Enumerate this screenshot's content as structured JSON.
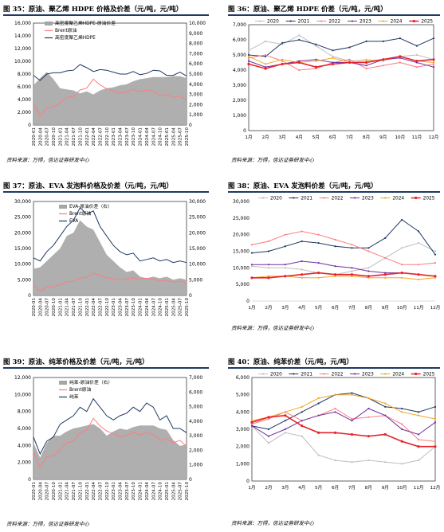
{
  "source_label": "资料来源：万得，信达证券研发中心",
  "chart_data": [
    {
      "id": "c35",
      "type": "line",
      "title": "图 35：原油、聚乙烯 HDPE 价格及价差（元/吨，元/吨）",
      "x": [
        "2020-01",
        "2020-04",
        "2020-07",
        "2020-10",
        "2021-01",
        "2021-04",
        "2021-07",
        "2021-10",
        "2022-01",
        "2022-04",
        "2022-07",
        "2022-10",
        "2023-01",
        "2023-04",
        "2023-07",
        "2023-10",
        "2024-01",
        "2024-04",
        "2024-07",
        "2024-10",
        "2025-01",
        "2025-04",
        "2025-07",
        "2025-10"
      ],
      "ylim_left": [
        0,
        16000
      ],
      "yticks_left": [
        0,
        2000,
        4000,
        6000,
        8000,
        10000,
        12000,
        14000,
        16000
      ],
      "ylim_right": [
        0,
        10000
      ],
      "yticks_right": [
        0,
        1000,
        2000,
        3000,
        4000,
        5000,
        6000,
        7000,
        8000,
        9000,
        10000
      ],
      "legend_position": "top-left",
      "series": [
        {
          "name": "高密度聚乙烯HDPE-原油价差",
          "kind": "area",
          "axis": "right",
          "color": "#a6a6a6",
          "values": [
            3900,
            4600,
            5200,
            4500,
            3600,
            3500,
            3400,
            3100,
            3300,
            3000,
            3400,
            3600,
            3700,
            3900,
            4000,
            4300,
            4500,
            4600,
            4700,
            4700,
            4700,
            4800,
            4800,
            4600
          ]
        },
        {
          "name": "Brent原油",
          "kind": "line",
          "axis": "left",
          "color": "#ff7c80",
          "values": [
            3300,
            1400,
            2700,
            2800,
            3500,
            4300,
            4500,
            5500,
            5800,
            7200,
            6300,
            5700,
            5400,
            5000,
            5200,
            5600,
            5200,
            5500,
            5300,
            4600,
            4800,
            4300,
            4600,
            3900
          ]
        },
        {
          "name": "高密度聚乙烯HDPE",
          "kind": "line",
          "axis": "left",
          "color": "#1f3864",
          "values": [
            7800,
            7000,
            8000,
            8200,
            8200,
            8500,
            8600,
            9500,
            9000,
            8400,
            8700,
            8600,
            8300,
            8000,
            8000,
            8400,
            7900,
            8100,
            8600,
            8500,
            7800,
            7800,
            8300,
            7700
          ]
        }
      ]
    },
    {
      "id": "c36",
      "type": "line",
      "title": "图 36：原油、聚乙烯 HDPE 价差（元/吨，元/吨）",
      "x": [
        "1月",
        "2月",
        "3月",
        "4月",
        "5月",
        "6月",
        "7月",
        "8月",
        "9月",
        "10月",
        "11月",
        "12月"
      ],
      "ylim": [
        0,
        7000
      ],
      "yticks": [
        0,
        1000,
        2000,
        3000,
        4000,
        5000,
        6000,
        7000
      ],
      "legend_position": "top",
      "series": [
        {
          "name": "2020",
          "color": "#bfbfbf",
          "values": [
            5300,
            5900,
            5700,
            6300,
            5600,
            4900,
            4600,
            4700,
            4600,
            4900,
            5000,
            4700
          ]
        },
        {
          "name": "2021",
          "color": "#1f3864",
          "values": [
            5000,
            4900,
            5800,
            6000,
            5700,
            5300,
            5500,
            5900,
            5900,
            6100,
            5600,
            6100
          ]
        },
        {
          "name": "2022",
          "color": "#ff7c80",
          "values": [
            4800,
            5000,
            4600,
            4000,
            4100,
            4500,
            4700,
            4100,
            4300,
            4500,
            4200,
            4400
          ]
        },
        {
          "name": "2023",
          "color": "#7030a0",
          "values": [
            4600,
            4200,
            4400,
            4600,
            4700,
            4500,
            4500,
            4300,
            4700,
            4800,
            4500,
            4200
          ]
        },
        {
          "name": "2024",
          "color": "#f5a623",
          "values": [
            4900,
            4400,
            4700,
            4500,
            4600,
            4800,
            4500,
            4600,
            4700,
            4900,
            4600,
            4500
          ]
        },
        {
          "name": "2025",
          "color": "#e8222a",
          "bold": true,
          "values": [
            4400,
            4100,
            4400,
            4500,
            4200,
            4400,
            4500,
            4500,
            4700,
            4900,
            4600,
            4700
          ]
        }
      ]
    },
    {
      "id": "c37",
      "type": "line",
      "title": "图 37：原油、EVA 发泡料价格及价差（元/吨，元/吨）",
      "x": [
        "2020-01",
        "2020-04",
        "2020-07",
        "2020-10",
        "2021-01",
        "2021-04",
        "2021-07",
        "2021-10",
        "2022-01",
        "2022-04",
        "2022-07",
        "2022-10",
        "2023-01",
        "2023-04",
        "2023-07",
        "2023-10",
        "2024-01",
        "2024-04",
        "2024-07",
        "2024-10",
        "2025-01",
        "2025-04",
        "2025-07",
        "2025-10"
      ],
      "ylim_left": [
        0,
        30000
      ],
      "yticks_left": [
        0,
        5000,
        10000,
        15000,
        20000,
        25000,
        30000
      ],
      "ylim_right": [
        0,
        30000
      ],
      "yticks_right": [
        0,
        5000,
        10000,
        15000,
        20000,
        25000,
        30000
      ],
      "legend_position": "top-left",
      "series": [
        {
          "name": "EVA-原油价差（右）",
          "kind": "area",
          "axis": "right",
          "color": "#a6a6a6",
          "values": [
            8500,
            9000,
            11000,
            13000,
            15000,
            19000,
            20000,
            24000,
            22000,
            21000,
            17000,
            13000,
            11000,
            9000,
            7500,
            8000,
            6000,
            5500,
            6000,
            5500,
            6000,
            5000,
            5500,
            5000
          ]
        },
        {
          "name": "Brent原油",
          "kind": "line",
          "axis": "left",
          "color": "#ff7c80",
          "values": [
            3300,
            1400,
            2700,
            2800,
            3500,
            4300,
            4500,
            5500,
            5800,
            7200,
            6300,
            5700,
            5400,
            5000,
            5200,
            5600,
            5200,
            5500,
            5300,
            4600,
            4800,
            4300,
            4600,
            3900
          ]
        },
        {
          "name": "EVA",
          "kind": "line",
          "axis": "left",
          "color": "#1f3864",
          "values": [
            12000,
            11000,
            14000,
            16000,
            19000,
            22000,
            24000,
            28000,
            26000,
            27000,
            22000,
            19000,
            16000,
            14000,
            13000,
            13500,
            11000,
            11500,
            12000,
            11000,
            11500,
            10500,
            11000,
            10500
          ]
        }
      ]
    },
    {
      "id": "c38",
      "type": "line",
      "title": "图 38：原油、EVA 发泡料价差（元/吨，元/吨）",
      "x": [
        "1月",
        "2月",
        "3月",
        "4月",
        "5月",
        "6月",
        "7月",
        "8月",
        "9月",
        "10月",
        "11月",
        "12月"
      ],
      "ylim": [
        0,
        30000
      ],
      "yticks": [
        0,
        5000,
        10000,
        15000,
        20000,
        25000,
        30000
      ],
      "legend_position": "top",
      "series": [
        {
          "name": "2020",
          "color": "#bfbfbf",
          "values": [
            10500,
            10000,
            10000,
            9500,
            8500,
            8000,
            9000,
            10000,
            13000,
            16000,
            17500,
            15000
          ]
        },
        {
          "name": "2021",
          "color": "#1f3864",
          "values": [
            14500,
            15000,
            16500,
            18000,
            17500,
            16500,
            16000,
            16000,
            19000,
            24500,
            21000,
            14000
          ]
        },
        {
          "name": "2022",
          "color": "#ff7c80",
          "values": [
            17000,
            18000,
            20000,
            21000,
            20000,
            18500,
            17000,
            15000,
            13000,
            11000,
            11000,
            11500
          ]
        },
        {
          "name": "2023",
          "color": "#7030a0",
          "values": [
            11000,
            11000,
            11000,
            12000,
            11500,
            10500,
            10000,
            9000,
            8500,
            8500,
            8000,
            7500
          ]
        },
        {
          "name": "2024",
          "color": "#f5a623",
          "values": [
            7000,
            7500,
            7500,
            7000,
            7000,
            7500,
            7500,
            7000,
            7000,
            7000,
            6500,
            7000
          ]
        },
        {
          "name": "2025",
          "color": "#e8222a",
          "bold": true,
          "values": [
            7000,
            7000,
            7500,
            8000,
            8500,
            8000,
            8000,
            7500,
            8000,
            8500,
            8000,
            7500
          ]
        }
      ]
    },
    {
      "id": "c39",
      "type": "line",
      "title": "图 39：原油、纯苯价格及价差（元/吨，元/吨）",
      "x": [
        "2020-01",
        "2020-04",
        "2020-07",
        "2020-10",
        "2021-01",
        "2021-04",
        "2021-07",
        "2021-10",
        "2022-01",
        "2022-04",
        "2022-07",
        "2022-10",
        "2023-01",
        "2023-04",
        "2023-07",
        "2023-10",
        "2024-01",
        "2024-04",
        "2024-07",
        "2024-10",
        "2025-01",
        "2025-04",
        "2025-07",
        "2025-10"
      ],
      "ylim_left": [
        0,
        12000
      ],
      "yticks_left": [
        0,
        2000,
        4000,
        6000,
        8000,
        10000,
        12000
      ],
      "ylim_right": [
        0,
        7000
      ],
      "yticks_right": [
        0,
        1000,
        2000,
        3000,
        4000,
        5000,
        6000,
        7000
      ],
      "legend_position": "top-left",
      "series": [
        {
          "name": "纯苯-原油价差（右）",
          "kind": "area",
          "axis": "right",
          "color": "#a6a6a6",
          "values": [
            2500,
            1500,
            2500,
            3000,
            3000,
            3300,
            3500,
            3600,
            3700,
            3800,
            3500,
            3000,
            3300,
            3500,
            3400,
            3600,
            3700,
            3700,
            3700,
            3500,
            3400,
            2700,
            2300,
            2400
          ]
        },
        {
          "name": "Brent原油",
          "kind": "line",
          "axis": "left",
          "color": "#ff7c80",
          "values": [
            3300,
            1400,
            2700,
            2800,
            3500,
            4300,
            4500,
            5500,
            5800,
            7200,
            6300,
            5700,
            5400,
            5000,
            5200,
            5600,
            5200,
            5500,
            5300,
            4600,
            4800,
            4300,
            4600,
            3900
          ]
        },
        {
          "name": "纯苯",
          "kind": "line",
          "axis": "left",
          "color": "#1f3864",
          "values": [
            5000,
            3000,
            4500,
            5000,
            6500,
            7000,
            7500,
            8500,
            8000,
            9500,
            8500,
            7500,
            7000,
            7500,
            7800,
            8500,
            8000,
            9000,
            8500,
            7000,
            7500,
            6000,
            6000,
            5500
          ]
        }
      ]
    },
    {
      "id": "c40",
      "type": "line",
      "title": "图 40：原油、纯苯价差（元/吨，元/吨）",
      "x": [
        "1月",
        "2月",
        "3月",
        "4月",
        "5月",
        "6月",
        "7月",
        "8月",
        "9月",
        "10月",
        "11月",
        "12月"
      ],
      "ylim": [
        0,
        6000
      ],
      "yticks": [
        0,
        1000,
        2000,
        3000,
        4000,
        5000,
        6000
      ],
      "legend_position": "top",
      "series": [
        {
          "name": "2020",
          "color": "#bfbfbf",
          "values": [
            3200,
            2200,
            2800,
            2600,
            1500,
            1200,
            1100,
            1200,
            1100,
            1000,
            1200,
            2000
          ]
        },
        {
          "name": "2021",
          "color": "#1f3864",
          "values": [
            3200,
            3000,
            3500,
            4000,
            4500,
            5000,
            5100,
            4800,
            4300,
            4200,
            4000,
            4300
          ]
        },
        {
          "name": "2022",
          "color": "#ff7c80",
          "values": [
            3300,
            3600,
            4000,
            3500,
            3800,
            4200,
            3600,
            3700,
            3800,
            3300,
            2400,
            2300
          ]
        },
        {
          "name": "2023",
          "color": "#7030a0",
          "values": [
            3200,
            2600,
            3000,
            3500,
            3800,
            4000,
            3500,
            4200,
            3800,
            3000,
            2700,
            3400
          ]
        },
        {
          "name": "2024",
          "color": "#f5a623",
          "values": [
            3500,
            3700,
            4000,
            4300,
            4800,
            5000,
            5000,
            4800,
            4500,
            4000,
            3800,
            3600
          ]
        },
        {
          "name": "2025",
          "color": "#e8222a",
          "bold": true,
          "values": [
            3400,
            3700,
            3800,
            3200,
            2800,
            2800,
            2700,
            2600,
            2700,
            2300,
            2000,
            2000
          ]
        }
      ]
    }
  ]
}
